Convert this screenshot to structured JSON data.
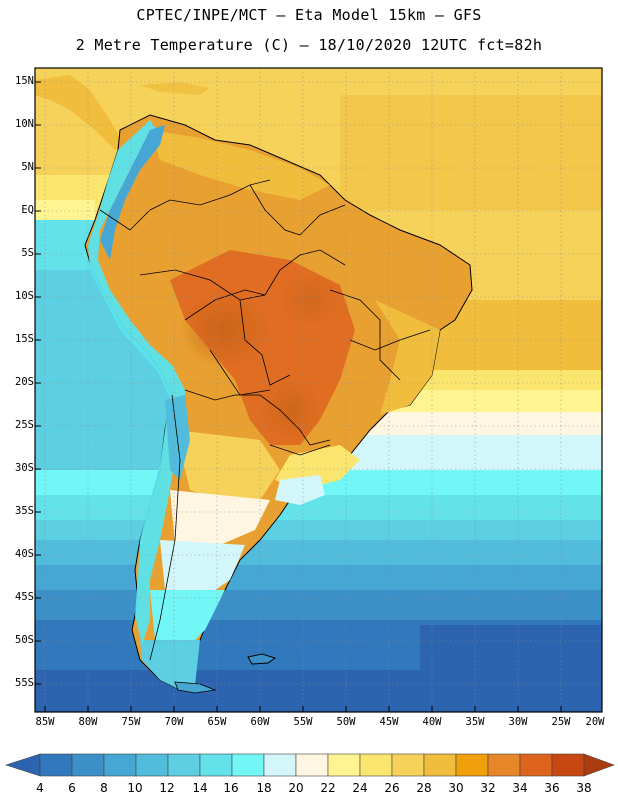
{
  "header": {
    "line1": "CPTEC/INPE/MCT –  Eta Model 15km – GFS",
    "line2": "2 Metre Temperature (C) – 18/10/2020 12UTC fct=82h"
  },
  "map": {
    "variable": "2 Metre Temperature",
    "units": "C",
    "lon_range": [
      -85,
      -20
    ],
    "lat_range": [
      -58,
      17
    ],
    "lat_labels": [
      "15N",
      "10N",
      "5N",
      "EQ",
      "5S",
      "10S",
      "15S",
      "20S",
      "25S",
      "30S",
      "35S",
      "40S",
      "45S",
      "50S",
      "55S"
    ],
    "lon_labels": [
      "85W",
      "80W",
      "75W",
      "70W",
      "65W",
      "60W",
      "55W",
      "50W",
      "45W",
      "40W",
      "35W",
      "30W",
      "25W",
      "20W"
    ],
    "colors": {
      "ocean_warm": "#f5d060",
      "land_hot": "#e8a030",
      "land_hottest": "#c86418",
      "andes": "#5ae4ee",
      "south_ocean": "#2d64b0",
      "frame": "#000000"
    }
  },
  "colorbar": {
    "labels": [
      "4",
      "6",
      "8",
      "10",
      "12",
      "14",
      "16",
      "18",
      "20",
      "22",
      "24",
      "26",
      "28",
      "30",
      "32",
      "34",
      "36",
      "38"
    ],
    "colors": [
      "#2d64b0",
      "#3278bc",
      "#3c90c8",
      "#46a6d4",
      "#52bcdc",
      "#5ccfe2",
      "#64e2ea",
      "#73f6f6",
      "#d2f6fa",
      "#fff6e2",
      "#fff491",
      "#fae66e",
      "#f6d25a",
      "#f0be3c",
      "#f0a00a",
      "#e68628",
      "#de641e",
      "#c84814",
      "#aa3c10"
    ]
  }
}
